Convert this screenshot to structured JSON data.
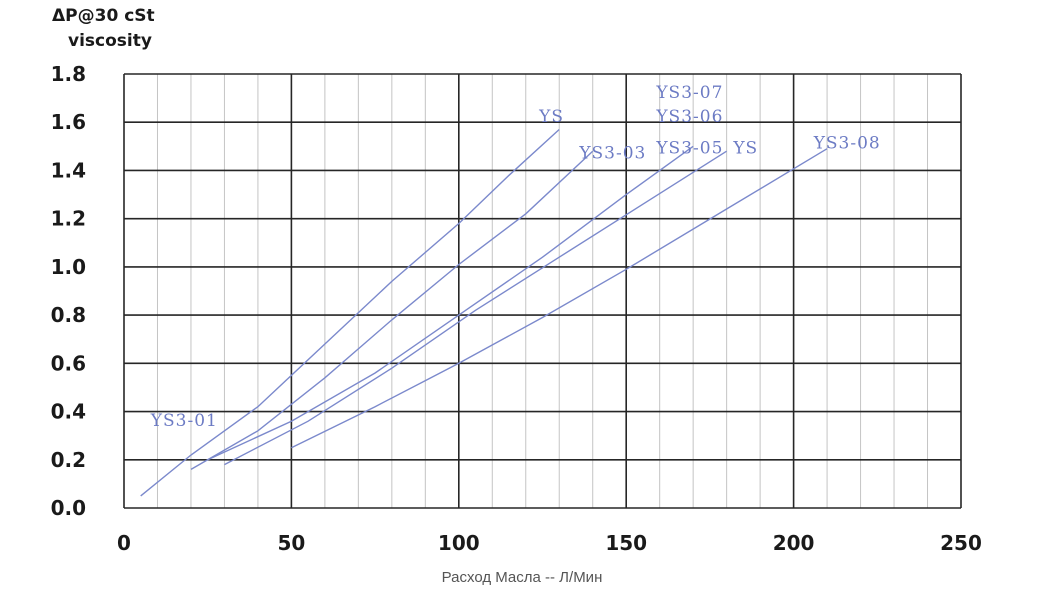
{
  "chart_data": {
    "type": "line",
    "title": "",
    "ylabel_lines": [
      "ΔP@30 cSt",
      "viscosity"
    ],
    "xlabel": "Расход Масла -- Л/Мин",
    "xlim": [
      0,
      250
    ],
    "ylim": [
      0,
      1.8
    ],
    "x_ticks": [
      0,
      50,
      100,
      150,
      200,
      250
    ],
    "x_tick_labels": [
      "0",
      "50",
      "100",
      "150",
      "200",
      "250"
    ],
    "y_ticks": [
      0.0,
      0.2,
      0.4,
      0.6,
      0.8,
      1.0,
      1.2,
      1.4,
      1.6,
      1.8
    ],
    "y_tick_labels": [
      "0.0",
      "0.2",
      "0.4",
      "0.6",
      "0.8",
      "1.0",
      "1.2",
      "1.4",
      "1.6",
      "1.8"
    ],
    "x_minor_step": 10,
    "grid": true,
    "line_color": "#7b89cc",
    "label_color": "#6c7bc4",
    "series": [
      {
        "label": "YS",
        "x": [
          5,
          20,
          40,
          60,
          80,
          100,
          115,
          130
        ],
        "y": [
          0.05,
          0.22,
          0.42,
          0.68,
          0.94,
          1.18,
          1.38,
          1.57
        ]
      },
      {
        "label": "YS3-03",
        "x": [
          20,
          40,
          60,
          80,
          100,
          120,
          140
        ],
        "y": [
          0.16,
          0.32,
          0.54,
          0.78,
          1.01,
          1.22,
          1.48
        ]
      },
      {
        "label": "YS3-07",
        "x": [
          25,
          50,
          75,
          100,
          125,
          150,
          170
        ],
        "y": [
          0.2,
          0.36,
          0.56,
          0.8,
          1.04,
          1.3,
          1.5
        ]
      },
      {
        "label": "YS",
        "x": [
          30,
          55,
          80,
          105,
          130,
          155,
          180
        ],
        "y": [
          0.18,
          0.36,
          0.58,
          0.82,
          1.04,
          1.26,
          1.48
        ]
      },
      {
        "label": "YS3-08",
        "x": [
          50,
          75,
          100,
          125,
          150,
          180,
          210
        ],
        "y": [
          0.25,
          0.42,
          0.6,
          0.79,
          0.99,
          1.24,
          1.49
        ]
      }
    ],
    "annotations": [
      {
        "text": "YS",
        "x": 124,
        "y": 1.6
      },
      {
        "text": "YS3-03",
        "x": 136,
        "y": 1.45
      },
      {
        "text": "YS3-07",
        "x": 159,
        "y": 1.7
      },
      {
        "text": "YS3-06",
        "x": 159,
        "y": 1.6
      },
      {
        "text": "YS3-05",
        "x": 159,
        "y": 1.47
      },
      {
        "text": "YS",
        "x": 182,
        "y": 1.47
      },
      {
        "text": "YS3-08",
        "x": 206,
        "y": 1.49
      },
      {
        "text": "YS3-01",
        "x": 8,
        "y": 0.34
      }
    ]
  }
}
